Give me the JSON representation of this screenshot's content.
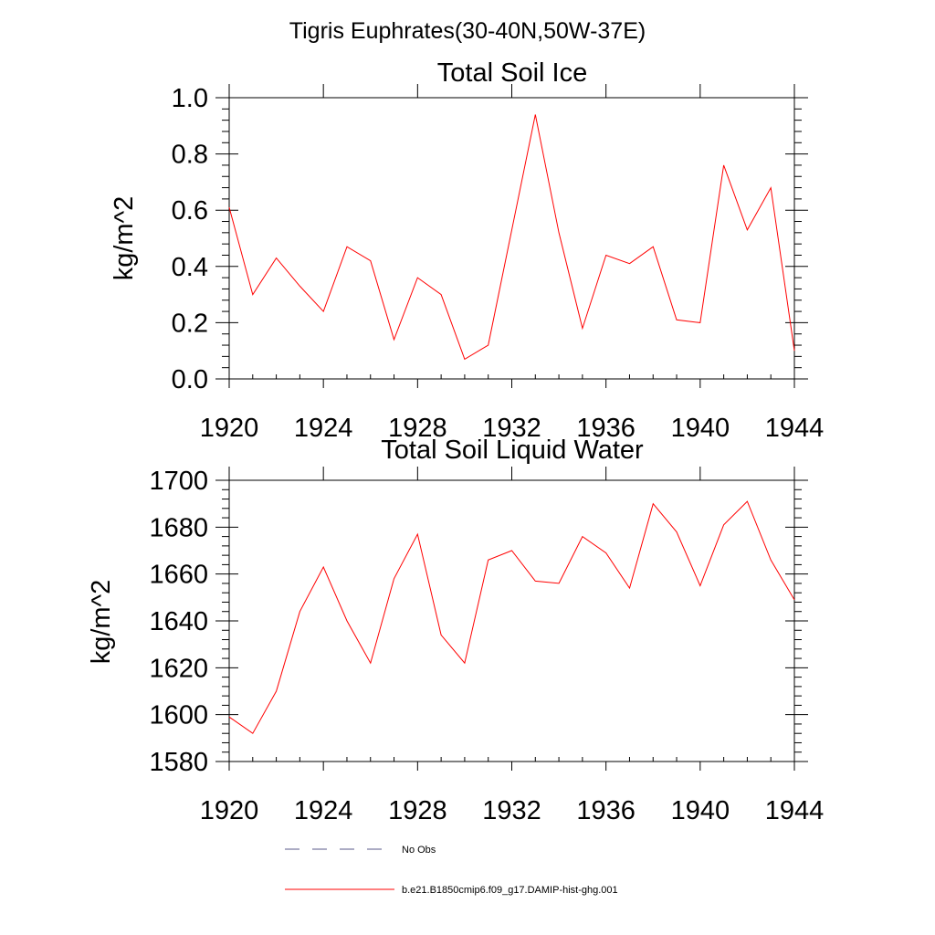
{
  "figure": {
    "title": "Tigris Euphrates(30-40N,50W-37E)"
  },
  "chart_data": [
    {
      "type": "line",
      "title": "Total Soil Ice",
      "xlabel": "",
      "ylabel": "kg/m^2",
      "xlim": [
        1920,
        1944
      ],
      "ylim": [
        0.0,
        1.0
      ],
      "x_ticks": [
        1920,
        1924,
        1928,
        1932,
        1936,
        1940,
        1944
      ],
      "x_tick_labels": [
        "1920",
        "1924",
        "1928",
        "1932",
        "1936",
        "1940",
        "1944"
      ],
      "y_ticks": [
        0.0,
        0.2,
        0.4,
        0.6,
        0.8,
        1.0
      ],
      "y_tick_labels": [
        "0.0",
        "0.2",
        "0.4",
        "0.6",
        "0.8",
        "1.0"
      ],
      "grid": false,
      "series": [
        {
          "name": "b.e21.B1850cmip6.f09_g17.DAMIP-hist-ghg.001",
          "color": "#ff0000",
          "x": [
            1920,
            1921,
            1922,
            1923,
            1924,
            1925,
            1926,
            1927,
            1928,
            1929,
            1930,
            1931,
            1932,
            1933,
            1934,
            1935,
            1936,
            1937,
            1938,
            1939,
            1940,
            1941,
            1942,
            1943,
            1944
          ],
          "y": [
            0.61,
            0.3,
            0.43,
            0.33,
            0.24,
            0.47,
            0.42,
            0.14,
            0.36,
            0.3,
            0.07,
            0.12,
            0.53,
            0.94,
            0.52,
            0.18,
            0.44,
            0.41,
            0.47,
            0.21,
            0.2,
            0.76,
            0.53,
            0.68,
            0.1
          ]
        }
      ]
    },
    {
      "type": "line",
      "title": "Total Soil Liquid Water",
      "xlabel": "",
      "ylabel": "kg/m^2",
      "xlim": [
        1920,
        1944
      ],
      "ylim": [
        1580,
        1700
      ],
      "x_ticks": [
        1920,
        1924,
        1928,
        1932,
        1936,
        1940,
        1944
      ],
      "x_tick_labels": [
        "1920",
        "1924",
        "1928",
        "1932",
        "1936",
        "1940",
        "1944"
      ],
      "y_ticks": [
        1580,
        1600,
        1620,
        1640,
        1660,
        1680,
        1700
      ],
      "y_tick_labels": [
        "1580",
        "1600",
        "1620",
        "1640",
        "1660",
        "1680",
        "1700"
      ],
      "grid": false,
      "series": [
        {
          "name": "b.e21.B1850cmip6.f09_g17.DAMIP-hist-ghg.001",
          "color": "#ff0000",
          "x": [
            1920,
            1921,
            1922,
            1923,
            1924,
            1925,
            1926,
            1927,
            1928,
            1929,
            1930,
            1931,
            1932,
            1933,
            1934,
            1935,
            1936,
            1937,
            1938,
            1939,
            1940,
            1941,
            1942,
            1943,
            1944
          ],
          "y": [
            1599,
            1592,
            1610,
            1644,
            1663,
            1640,
            1622,
            1658,
            1677,
            1634,
            1622,
            1666,
            1670,
            1657,
            1656,
            1676,
            1669,
            1654,
            1690,
            1678,
            1655,
            1681,
            1691,
            1666,
            1649
          ]
        }
      ]
    }
  ],
  "legend": {
    "placement": "bottom",
    "entries": [
      {
        "label": "No Obs",
        "color": "#5a5a8a",
        "style": "dashed"
      },
      {
        "label": "b.e21.B1850cmip6.f09_g17.DAMIP-hist-ghg.001",
        "color": "#ff0000",
        "style": "solid"
      }
    ]
  }
}
